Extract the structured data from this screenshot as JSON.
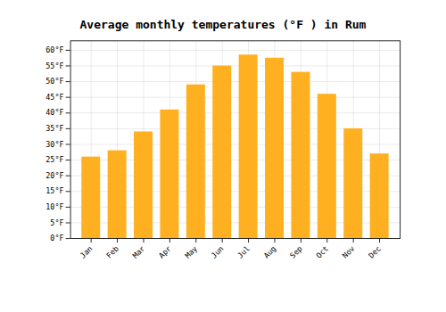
{
  "chart_data": {
    "type": "bar",
    "title": "Average monthly temperatures (°F ) in Rum",
    "categories": [
      "Jan",
      "Feb",
      "Mar",
      "Apr",
      "May",
      "Jun",
      "Jul",
      "Aug",
      "Sep",
      "Oct",
      "Nov",
      "Dec"
    ],
    "values": [
      26,
      28,
      34,
      41,
      49,
      55,
      58.5,
      57.5,
      53,
      46,
      35,
      27
    ],
    "color": "#FFB020",
    "ylim": [
      0,
      63
    ],
    "yticks": [
      {
        "value": 0,
        "label": "0°F"
      },
      {
        "value": 5,
        "label": "5°F"
      },
      {
        "value": 10,
        "label": "10°F"
      },
      {
        "value": 15,
        "label": "15°F"
      },
      {
        "value": 20,
        "label": "20°F"
      },
      {
        "value": 25,
        "label": "25°F"
      },
      {
        "value": 30,
        "label": "30°F"
      },
      {
        "value": 35,
        "label": "35°F"
      },
      {
        "value": 40,
        "label": "40°F"
      },
      {
        "value": 45,
        "label": "45°F"
      },
      {
        "value": 50,
        "label": "50°F"
      },
      {
        "value": 55,
        "label": "55°F"
      },
      {
        "value": 60,
        "label": "60°F"
      }
    ],
    "grid": true
  }
}
